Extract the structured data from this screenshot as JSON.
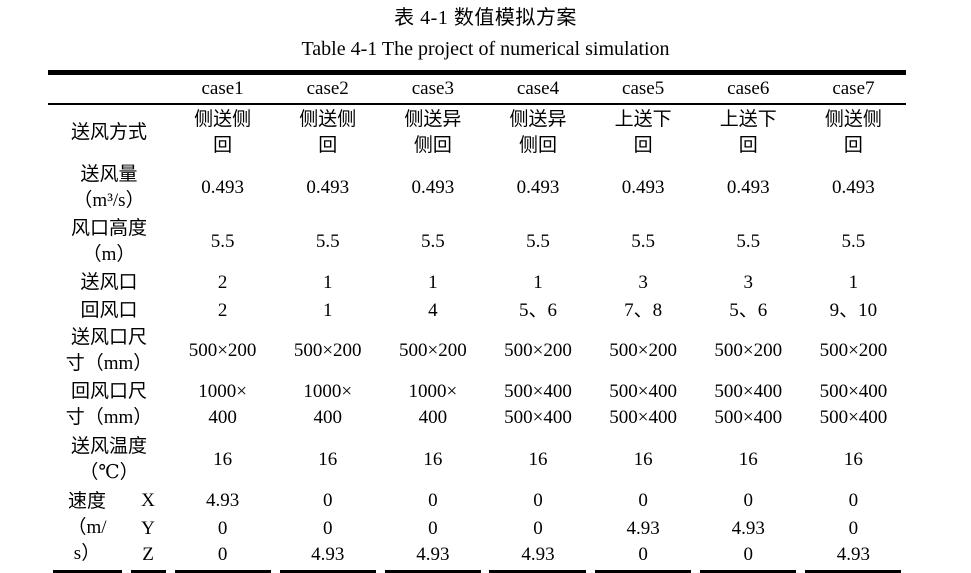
{
  "titles": {
    "zh": "表 4-1 数值模拟方案",
    "en": "Table 4-1 The project of numerical simulation"
  },
  "table": {
    "corner": "",
    "columns": [
      "case1",
      "case2",
      "case3",
      "case4",
      "case5",
      "case6",
      "case7"
    ],
    "rows": [
      {
        "label": "送风方式",
        "values": [
          "侧送侧\n回",
          "侧送侧\n回",
          "侧送异\n侧回",
          "侧送异\n侧回",
          "上送下\n回",
          "上送下\n回",
          "侧送侧\n回"
        ]
      },
      {
        "label": "送风量\n（m³/s）",
        "values": [
          "0.493",
          "0.493",
          "0.493",
          "0.493",
          "0.493",
          "0.493",
          "0.493"
        ]
      },
      {
        "label": "风口高度\n（m）",
        "values": [
          "5.5",
          "5.5",
          "5.5",
          "5.5",
          "5.5",
          "5.5",
          "5.5"
        ]
      },
      {
        "label": "送风口",
        "values": [
          "2",
          "1",
          "1",
          "1",
          "3",
          "3",
          "1"
        ]
      },
      {
        "label": "回风口",
        "values": [
          "2",
          "1",
          "4",
          "5、6",
          "7、8",
          "5、6",
          "9、10"
        ]
      },
      {
        "label": "送风口尺\n寸（mm）",
        "values": [
          "500×200",
          "500×200",
          "500×200",
          "500×200",
          "500×200",
          "500×200",
          "500×200"
        ]
      },
      {
        "label": "回风口尺\n寸（mm）",
        "values": [
          "1000×\n400",
          "1000×\n400",
          "1000×\n400",
          "500×400\n500×400",
          "500×400\n500×400",
          "500×400\n500×400",
          "500×400\n500×400"
        ]
      },
      {
        "label": "送风温度\n（℃）",
        "values": [
          "16",
          "16",
          "16",
          "16",
          "16",
          "16",
          "16"
        ]
      }
    ],
    "velocity": {
      "label": "速度\n（m/\ns）",
      "subrows": [
        {
          "axis": "X",
          "values": [
            "4.93",
            "0",
            "0",
            "0",
            "0",
            "0",
            "0"
          ]
        },
        {
          "axis": "Y",
          "values": [
            "0",
            "0",
            "0",
            "0",
            "4.93",
            "4.93",
            "0"
          ]
        },
        {
          "axis": "Z",
          "values": [
            "0",
            "4.93",
            "4.93",
            "4.93",
            "0",
            "0",
            "4.93"
          ]
        }
      ]
    }
  }
}
